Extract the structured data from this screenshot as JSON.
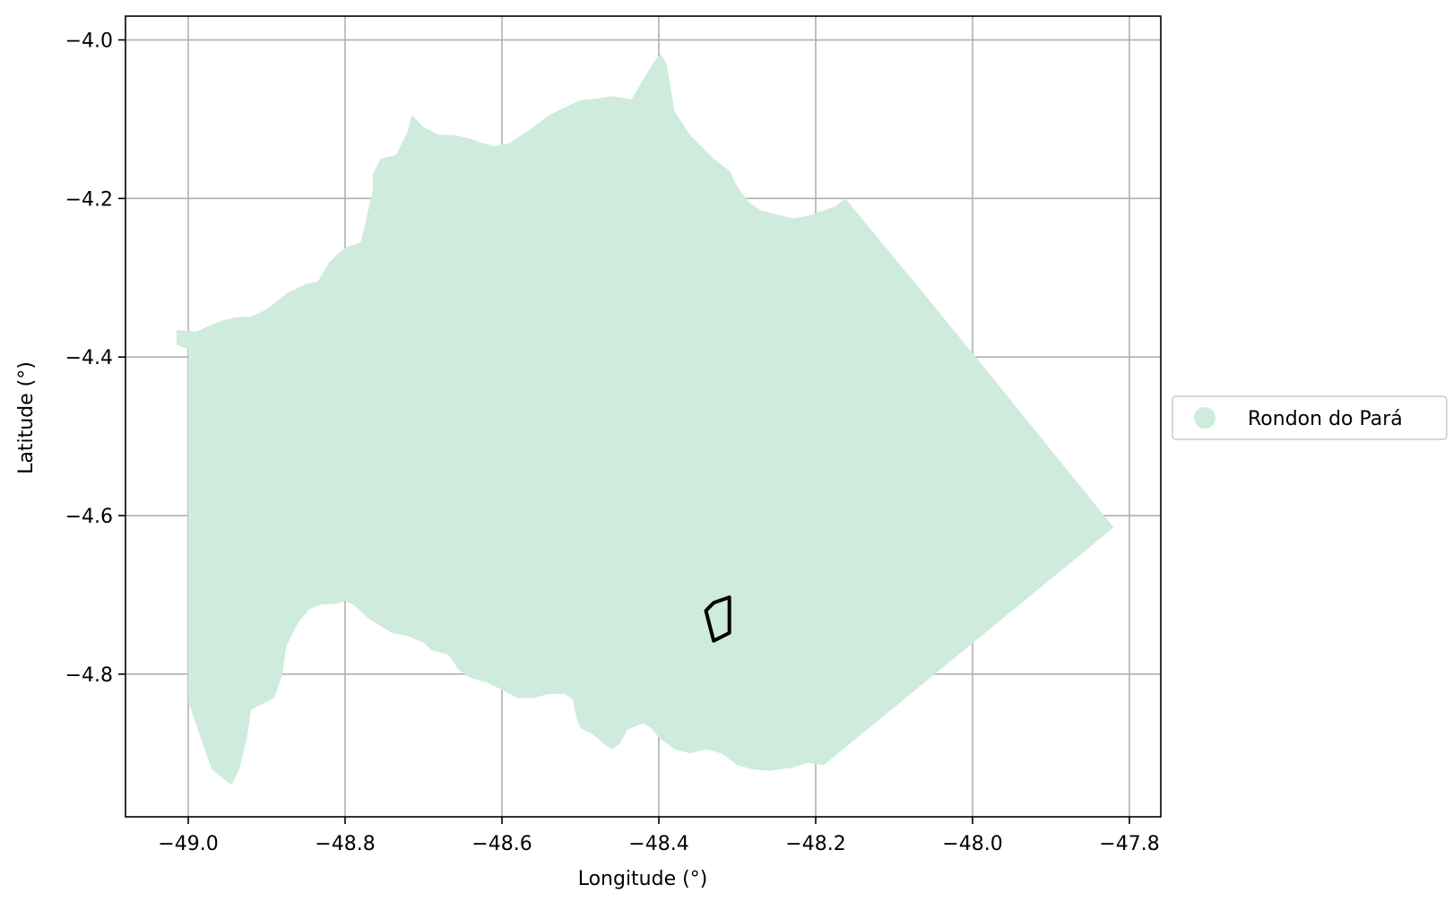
{
  "chart_data": {
    "type": "map",
    "xlabel": "Longitude (°)",
    "ylabel": "Latitude (°)",
    "xlim": [
      -49.08,
      -47.76
    ],
    "ylim": [
      -4.98,
      -3.97
    ],
    "x_ticks": [
      -49.0,
      -48.8,
      -48.6,
      -48.4,
      -48.2,
      -48.0,
      -47.8
    ],
    "x_tick_labels": [
      "−49.0",
      "−48.8",
      "−48.6",
      "−48.4",
      "−48.2",
      "−48.0",
      "−47.8"
    ],
    "y_ticks": [
      -4.0,
      -4.2,
      -4.4,
      -4.6,
      -4.8
    ],
    "y_tick_labels": [
      "−4.0",
      "−4.2",
      "−4.4",
      "−4.6",
      "−4.8"
    ],
    "grid": true,
    "legend_position": "right",
    "legend": [
      {
        "label": "Rondon do Pará",
        "color": "#cfebdd"
      }
    ],
    "region": {
      "name": "Rondon do Pará",
      "fill": "#cfebdd",
      "outline": [
        [
          -49.015,
          -4.366
        ],
        [
          -48.99,
          -4.368
        ],
        [
          -48.96,
          -4.355
        ],
        [
          -48.94,
          -4.35
        ],
        [
          -48.92,
          -4.349
        ],
        [
          -48.9,
          -4.34
        ],
        [
          -48.875,
          -4.32
        ],
        [
          -48.85,
          -4.308
        ],
        [
          -48.835,
          -4.305
        ],
        [
          -48.82,
          -4.28
        ],
        [
          -48.8,
          -4.262
        ],
        [
          -48.78,
          -4.255
        ],
        [
          -48.775,
          -4.235
        ],
        [
          -48.765,
          -4.19
        ],
        [
          -48.765,
          -4.17
        ],
        [
          -48.755,
          -4.15
        ],
        [
          -48.735,
          -4.145
        ],
        [
          -48.72,
          -4.115
        ],
        [
          -48.715,
          -4.095
        ],
        [
          -48.7,
          -4.11
        ],
        [
          -48.68,
          -4.12
        ],
        [
          -48.66,
          -4.12
        ],
        [
          -48.64,
          -4.125
        ],
        [
          -48.625,
          -4.13
        ],
        [
          -48.61,
          -4.134
        ],
        [
          -48.59,
          -4.13
        ],
        [
          -48.575,
          -4.12
        ],
        [
          -48.56,
          -4.11
        ],
        [
          -48.54,
          -4.095
        ],
        [
          -48.52,
          -4.085
        ],
        [
          -48.5,
          -4.076
        ],
        [
          -48.48,
          -4.074
        ],
        [
          -48.46,
          -4.071
        ],
        [
          -48.435,
          -4.075
        ],
        [
          -48.42,
          -4.05
        ],
        [
          -48.405,
          -4.026
        ],
        [
          -48.397,
          -4.018
        ],
        [
          -48.39,
          -4.03
        ],
        [
          -48.385,
          -4.06
        ],
        [
          -48.38,
          -4.09
        ],
        [
          -48.37,
          -4.105
        ],
        [
          -48.36,
          -4.12
        ],
        [
          -48.345,
          -4.135
        ],
        [
          -48.33,
          -4.15
        ],
        [
          -48.31,
          -4.165
        ],
        [
          -48.3,
          -4.185
        ],
        [
          -48.285,
          -4.205
        ],
        [
          -48.27,
          -4.215
        ],
        [
          -48.25,
          -4.22
        ],
        [
          -48.23,
          -4.225
        ],
        [
          -48.21,
          -4.222
        ],
        [
          -48.19,
          -4.215
        ],
        [
          -48.175,
          -4.21
        ],
        [
          -48.162,
          -4.2
        ],
        [
          -48.0,
          -4.395
        ],
        [
          -47.82,
          -4.615
        ],
        [
          -48.19,
          -4.915
        ],
        [
          -48.21,
          -4.912
        ],
        [
          -48.23,
          -4.918
        ],
        [
          -48.26,
          -4.922
        ],
        [
          -48.28,
          -4.92
        ],
        [
          -48.3,
          -4.915
        ],
        [
          -48.32,
          -4.9
        ],
        [
          -48.34,
          -4.895
        ],
        [
          -48.36,
          -4.9
        ],
        [
          -48.38,
          -4.895
        ],
        [
          -48.4,
          -4.88
        ],
        [
          -48.41,
          -4.868
        ],
        [
          -48.42,
          -4.862
        ],
        [
          -48.44,
          -4.87
        ],
        [
          -48.45,
          -4.888
        ],
        [
          -48.46,
          -4.895
        ],
        [
          -48.47,
          -4.888
        ],
        [
          -48.485,
          -4.875
        ],
        [
          -48.5,
          -4.868
        ],
        [
          -48.505,
          -4.855
        ],
        [
          -48.51,
          -4.832
        ],
        [
          -48.52,
          -4.825
        ],
        [
          -48.54,
          -4.825
        ],
        [
          -48.56,
          -4.83
        ],
        [
          -48.58,
          -4.83
        ],
        [
          -48.6,
          -4.82
        ],
        [
          -48.62,
          -4.81
        ],
        [
          -48.64,
          -4.805
        ],
        [
          -48.655,
          -4.795
        ],
        [
          -48.665,
          -4.78
        ],
        [
          -48.67,
          -4.775
        ],
        [
          -48.69,
          -4.77
        ],
        [
          -48.7,
          -4.76
        ],
        [
          -48.72,
          -4.752
        ],
        [
          -48.74,
          -4.748
        ],
        [
          -48.75,
          -4.742
        ],
        [
          -48.77,
          -4.73
        ],
        [
          -48.79,
          -4.712
        ],
        [
          -48.8,
          -4.708
        ],
        [
          -48.81,
          -4.711
        ],
        [
          -48.83,
          -4.712
        ],
        [
          -48.845,
          -4.718
        ],
        [
          -48.86,
          -4.735
        ],
        [
          -48.875,
          -4.765
        ],
        [
          -48.88,
          -4.8
        ],
        [
          -48.89,
          -4.83
        ],
        [
          -48.91,
          -4.84
        ],
        [
          -48.92,
          -4.845
        ],
        [
          -48.925,
          -4.88
        ],
        [
          -48.935,
          -4.92
        ],
        [
          -48.945,
          -4.94
        ],
        [
          -48.97,
          -4.92
        ],
        [
          -49.0,
          -4.835
        ],
        [
          -49.0,
          -4.39
        ],
        [
          -49.015,
          -4.385
        ]
      ]
    },
    "outlined_polygon": {
      "stroke": "#000000",
      "points": [
        [
          -48.31,
          -4.703
        ],
        [
          -48.31,
          -4.748
        ],
        [
          -48.33,
          -4.758
        ],
        [
          -48.34,
          -4.72
        ],
        [
          -48.33,
          -4.71
        ]
      ]
    }
  }
}
